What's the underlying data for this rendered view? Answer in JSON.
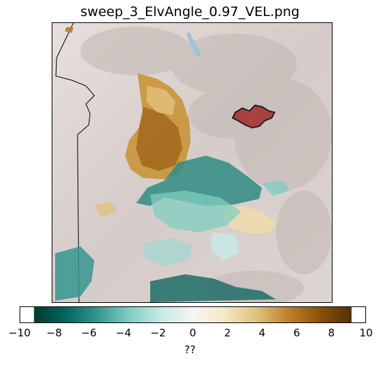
{
  "title": "sweep_3_ElvAngle_0.97_VEL.png",
  "colorbar": {
    "label": "??",
    "min": -10,
    "max": 10,
    "tick_labels": [
      "−10",
      "−8",
      "−6",
      "−4",
      "−2",
      "0",
      "2",
      "4",
      "6",
      "8",
      "10"
    ],
    "colors": [
      "#003c30",
      "#01665e",
      "#35978f",
      "#80cdc1",
      "#c7eae5",
      "#f5f5f5",
      "#f6e8c3",
      "#dfc27d",
      "#bf812d",
      "#8c510a",
      "#543005"
    ]
  },
  "map": {
    "terrain_color": "#d9d0cc",
    "water_color": "#9ec3dc",
    "highlight_color": "#a94141"
  }
}
